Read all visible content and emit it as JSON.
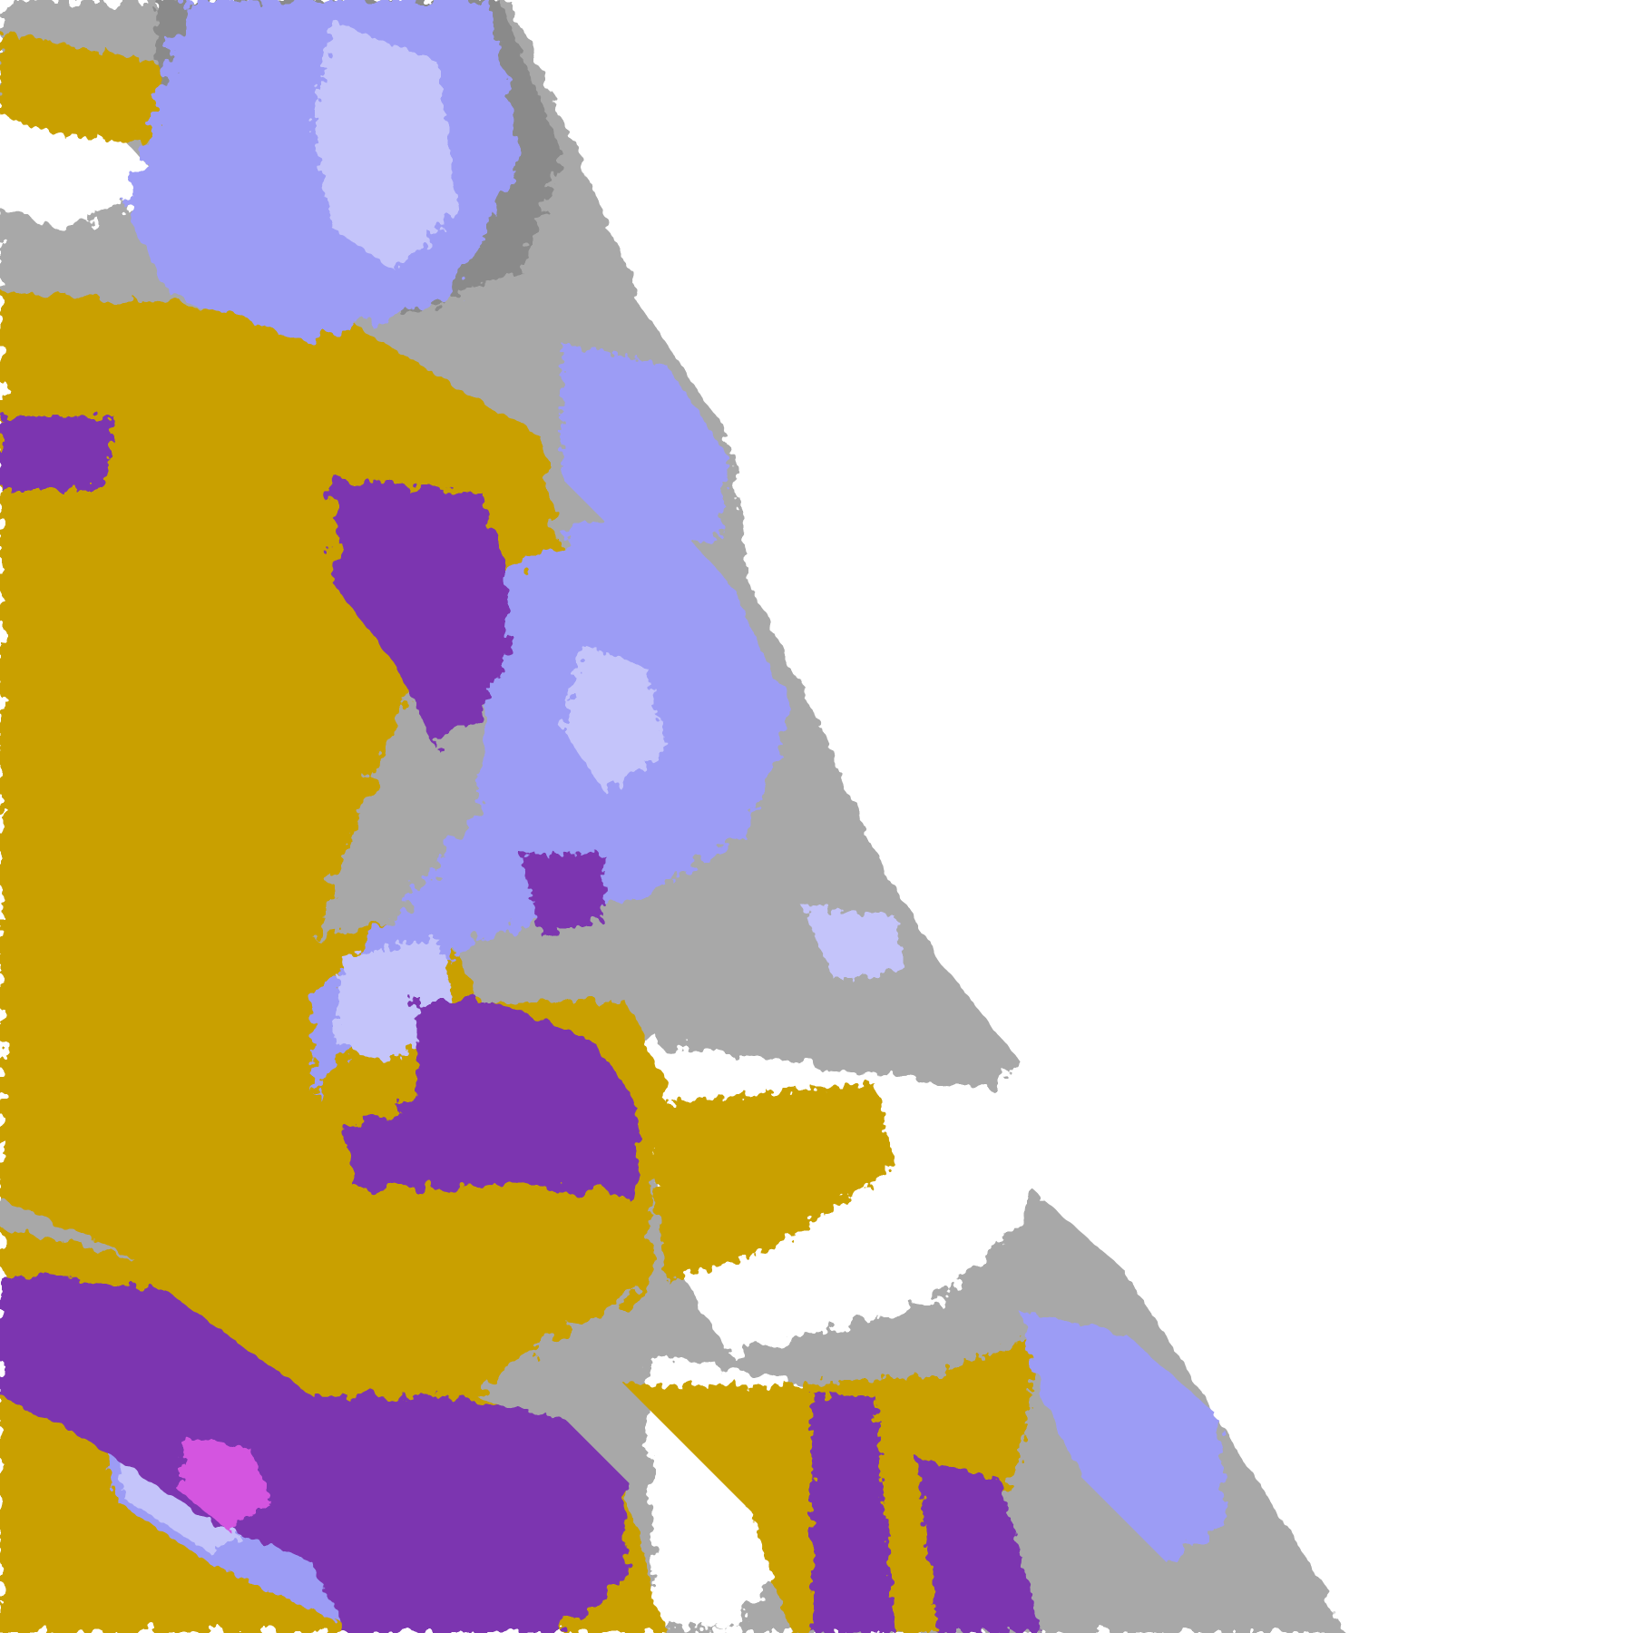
{
  "map": {
    "kind": "satellite cloud-type classification overlay",
    "background": "#ffffff",
    "palette": {
      "low_cloud_gold": "#c9a000",
      "mid_cloud_purple": "#7b35b0",
      "high_cloud_periwinkle": "#9c9cf5",
      "thin_cirrus_lavender": "#c4c4fa",
      "fractional_gray": "#a8a8a8",
      "dark_gray": "#8a8a8a",
      "convective_magenta": "#d455e0"
    }
  }
}
